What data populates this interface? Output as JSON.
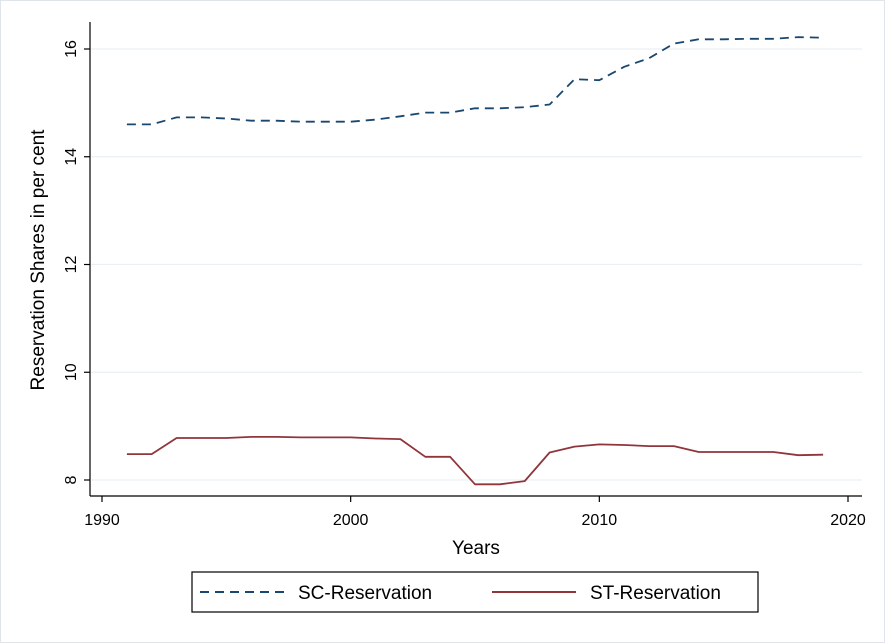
{
  "colors": {
    "background": "#ffffff",
    "grid": "#eaf0f3",
    "axis": "#000000",
    "legend_border": "#000000"
  },
  "chart_data": {
    "type": "line",
    "title": "",
    "xlabel": "Years",
    "ylabel": "Reservation Shares in per cent",
    "xlim": [
      1990,
      2020
    ],
    "ylim": [
      8,
      16
    ],
    "x_ticks": [
      1990,
      2000,
      2010,
      2020
    ],
    "x_tick_labels": [
      "1990",
      "2000",
      "2010",
      "2020"
    ],
    "y_ticks": [
      8,
      10,
      12,
      14,
      16
    ],
    "y_tick_labels": [
      "8",
      "10",
      "12",
      "14",
      "16"
    ],
    "grid": true,
    "legend_position": "bottom",
    "series": [
      {
        "name": "SC-Reservation",
        "color": "#1a476f",
        "dash": "dashed",
        "x": [
          1991,
          1992,
          1993,
          1994,
          1995,
          1996,
          1997,
          1998,
          1999,
          2000,
          2001,
          2002,
          2003,
          2004,
          2005,
          2006,
          2007,
          2008,
          2009,
          2010,
          2011,
          2012,
          2013,
          2014,
          2015,
          2016,
          2017,
          2018,
          2019
        ],
        "y": [
          14.6,
          14.6,
          14.73,
          14.73,
          14.71,
          14.67,
          14.67,
          14.65,
          14.65,
          14.65,
          14.69,
          14.75,
          14.82,
          14.82,
          14.9,
          14.9,
          14.92,
          14.97,
          15.44,
          15.42,
          15.67,
          15.83,
          16.1,
          16.18,
          16.18,
          16.19,
          16.19,
          16.22,
          16.21
        ]
      },
      {
        "name": "ST-Reservation",
        "color": "#90353b",
        "dash": "solid",
        "x": [
          1991,
          1992,
          1993,
          1994,
          1995,
          1996,
          1997,
          1998,
          1999,
          2000,
          2001,
          2002,
          2003,
          2004,
          2005,
          2006,
          2007,
          2008,
          2009,
          2010,
          2011,
          2012,
          2013,
          2014,
          2015,
          2016,
          2017,
          2018,
          2019
        ],
        "y": [
          8.48,
          8.48,
          8.78,
          8.78,
          8.78,
          8.8,
          8.8,
          8.79,
          8.79,
          8.79,
          8.77,
          8.76,
          8.43,
          8.43,
          7.92,
          7.92,
          7.98,
          8.51,
          8.62,
          8.66,
          8.65,
          8.63,
          8.63,
          8.52,
          8.52,
          8.52,
          8.52,
          8.46,
          8.47
        ]
      }
    ]
  }
}
